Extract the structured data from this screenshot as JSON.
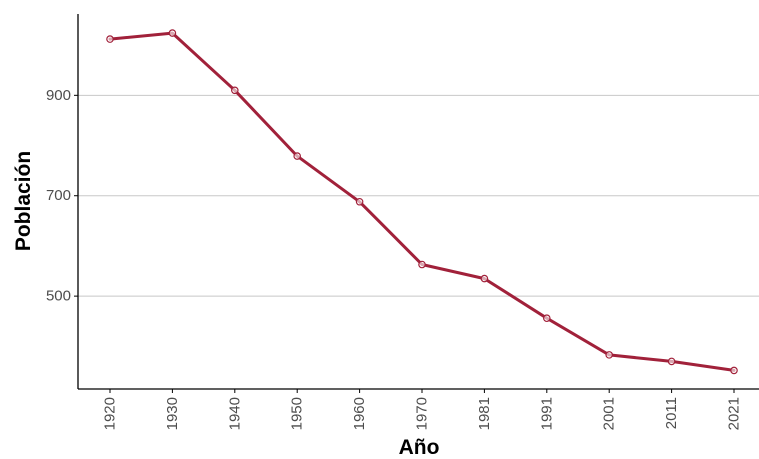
{
  "chart_data": {
    "type": "line",
    "xlabel": "Año",
    "ylabel": "Población",
    "categories": [
      "1920",
      "1930",
      "1940",
      "1950",
      "1960",
      "1970",
      "1981",
      "1991",
      "2001",
      "2011",
      "2021"
    ],
    "series": [
      {
        "values": [
          1012,
          1024,
          910,
          779,
          688,
          563,
          535,
          456,
          383,
          370,
          352
        ]
      }
    ],
    "ylim": [
      315,
      1062
    ],
    "yticks": [
      500,
      700,
      900
    ],
    "grid": "horizontal-major",
    "colors": {
      "line": "#a1213a",
      "gridline": "#c8c8c8",
      "axis": "#000000",
      "tick_label": "#4d4d4d"
    }
  }
}
